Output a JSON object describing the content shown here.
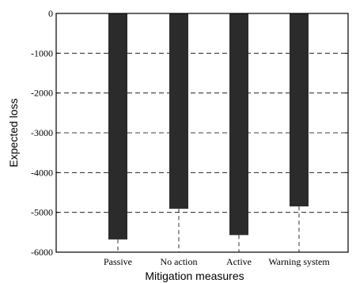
{
  "chart_data": {
    "type": "bar",
    "categories": [
      "Passive",
      "No action",
      "Active",
      "Warning system"
    ],
    "values": [
      -5680,
      -4910,
      -5570,
      -4850
    ],
    "xlabel": "Mitigation measures",
    "ylabel": "Expected loss",
    "ylim": [
      -6000,
      0
    ],
    "yticks": [
      0,
      -1000,
      -2000,
      -3000,
      -4000,
      -5000,
      -6000
    ],
    "grid": "y-dashed",
    "bar_color": "#2b2b2b"
  }
}
